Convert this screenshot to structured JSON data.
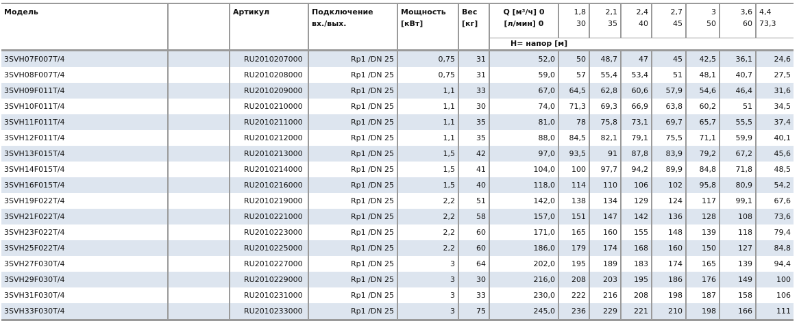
{
  "header": {
    "model": "Модель",
    "article": "Артикул",
    "connection": [
      "Подключение",
      "вх./вых."
    ],
    "power": [
      "Мощность",
      "[кВт]"
    ],
    "weight": [
      "Вес",
      "[кг]"
    ],
    "q_label": [
      "Q [м³/ч] 0",
      "[л/мин] 0"
    ],
    "q_m3h": [
      "1,8",
      "2,1",
      "2,4",
      "2,7",
      "3",
      "3,6",
      "4,4"
    ],
    "q_lmin": [
      "30",
      "35",
      "40",
      "45",
      "50",
      "60",
      "73,3"
    ],
    "head_label": "H= напор [м]"
  },
  "rows": [
    {
      "model": "3SVH07F007T/4",
      "article": "RU2010207000",
      "connection": "Rp1 /DN 25",
      "power": "0,75",
      "weight": "31",
      "head": [
        "52,0",
        "50",
        "48,7",
        "47",
        "45",
        "42,5",
        "36,1",
        "24,6"
      ]
    },
    {
      "model": "3SVH08F007T/4",
      "article": "RU2010208000",
      "connection": "Rp1 /DN 25",
      "power": "0,75",
      "weight": "31",
      "head": [
        "59,0",
        "57",
        "55,4",
        "53,4",
        "51",
        "48,1",
        "40,7",
        "27,5"
      ]
    },
    {
      "model": "3SVH09F011T/4",
      "article": "RU2010209000",
      "connection": "Rp1 /DN 25",
      "power": "1,1",
      "weight": "33",
      "head": [
        "67,0",
        "64,5",
        "62,8",
        "60,6",
        "57,9",
        "54,6",
        "46,4",
        "31,6"
      ]
    },
    {
      "model": "3SVH10F011T/4",
      "article": "RU2010210000",
      "connection": "Rp1 /DN 25",
      "power": "1,1",
      "weight": "30",
      "head": [
        "74,0",
        "71,3",
        "69,3",
        "66,9",
        "63,8",
        "60,2",
        "51",
        "34,5"
      ]
    },
    {
      "model": "3SVH11F011T/4",
      "article": "RU2010211000",
      "connection": "Rp1 /DN 25",
      "power": "1,1",
      "weight": "35",
      "head": [
        "81,0",
        "78",
        "75,8",
        "73,1",
        "69,7",
        "65,7",
        "55,5",
        "37,4"
      ]
    },
    {
      "model": "3SVH12F011T/4",
      "article": "RU2010212000",
      "connection": "Rp1 /DN 25",
      "power": "1,1",
      "weight": "35",
      "head": [
        "88,0",
        "84,5",
        "82,1",
        "79,1",
        "75,5",
        "71,1",
        "59,9",
        "40,1"
      ]
    },
    {
      "model": "3SVH13F015T/4",
      "article": "RU2010213000",
      "connection": "Rp1 /DN 25",
      "power": "1,5",
      "weight": "42",
      "head": [
        "97,0",
        "93,5",
        "91",
        "87,8",
        "83,9",
        "79,2",
        "67,2",
        "45,6"
      ]
    },
    {
      "model": "3SVH14F015T/4",
      "article": "RU2010214000",
      "connection": "Rp1 /DN 25",
      "power": "1,5",
      "weight": "41",
      "head": [
        "104,0",
        "100",
        "97,7",
        "94,2",
        "89,9",
        "84,8",
        "71,8",
        "48,5"
      ]
    },
    {
      "model": "3SVH16F015T/4",
      "article": "RU2010216000",
      "connection": "Rp1 /DN 25",
      "power": "1,5",
      "weight": "40",
      "head": [
        "118,0",
        "114",
        "110",
        "106",
        "102",
        "95,8",
        "80,9",
        "54,2"
      ]
    },
    {
      "model": "3SVH19F022T/4",
      "article": "RU2010219000",
      "connection": "Rp1 /DN 25",
      "power": "2,2",
      "weight": "51",
      "head": [
        "142,0",
        "138",
        "134",
        "129",
        "124",
        "117",
        "99,1",
        "67,6"
      ]
    },
    {
      "model": "3SVH21F022T/4",
      "article": "RU2010221000",
      "connection": "Rp1 /DN 25",
      "power": "2,2",
      "weight": "58",
      "head": [
        "157,0",
        "151",
        "147",
        "142",
        "136",
        "128",
        "108",
        "73,6"
      ]
    },
    {
      "model": "3SVH23F022T/4",
      "article": "RU2010223000",
      "connection": "Rp1 /DN 25",
      "power": "2,2",
      "weight": "60",
      "head": [
        "171,0",
        "165",
        "160",
        "155",
        "148",
        "139",
        "118",
        "79,4"
      ]
    },
    {
      "model": "3SVH25F022T/4",
      "article": "RU2010225000",
      "connection": "Rp1 /DN 25",
      "power": "2,2",
      "weight": "60",
      "head": [
        "186,0",
        "179",
        "174",
        "168",
        "160",
        "150",
        "127",
        "84,8"
      ]
    },
    {
      "model": "3SVH27F030T/4",
      "article": "RU2010227000",
      "connection": "Rp1 /DN 25",
      "power": "3",
      "weight": "64",
      "head": [
        "202,0",
        "195",
        "189",
        "183",
        "174",
        "165",
        "139",
        "94,4"
      ]
    },
    {
      "model": "3SVH29F030T/4",
      "article": "RU2010229000",
      "connection": "Rp1 /DN 25",
      "power": "3",
      "weight": "30",
      "head": [
        "216,0",
        "208",
        "203",
        "195",
        "186",
        "176",
        "149",
        "100"
      ]
    },
    {
      "model": "3SVH31F030T/4",
      "article": "RU2010231000",
      "connection": "Rp1 /DN 25",
      "power": "3",
      "weight": "33",
      "head": [
        "230,0",
        "222",
        "216",
        "208",
        "198",
        "187",
        "158",
        "106"
      ]
    },
    {
      "model": "3SVH33F030T/4",
      "article": "RU2010233000",
      "connection": "Rp1 /DN 25",
      "power": "3",
      "weight": "75",
      "head": [
        "245,0",
        "236",
        "229",
        "221",
        "210",
        "198",
        "166",
        "111"
      ]
    }
  ]
}
